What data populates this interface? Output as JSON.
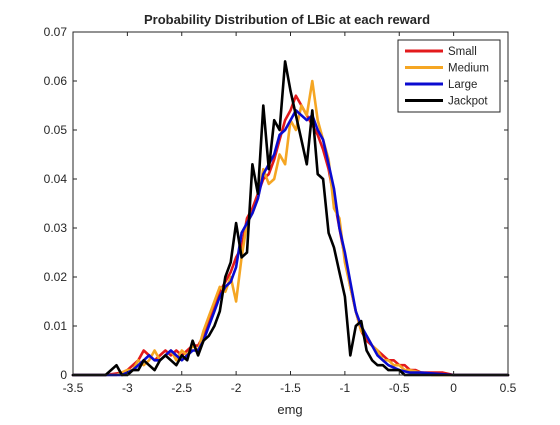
{
  "chart_data": {
    "type": "line",
    "title": "Probability Distribution of LBic at each reward",
    "xlabel": "emg",
    "ylabel": "",
    "xlim": [
      -3.5,
      0.5
    ],
    "ylim": [
      0,
      0.07
    ],
    "xticks": [
      -3.5,
      -3,
      -2.5,
      -2,
      -1.5,
      -1,
      -0.5,
      0,
      0.5
    ],
    "xtick_labels": [
      "-3.5",
      "-3",
      "-2.5",
      "-2",
      "-1.5",
      "-1",
      "-0.5",
      "0",
      "0.5"
    ],
    "yticks": [
      0,
      0.01,
      0.02,
      0.03,
      0.04,
      0.05,
      0.06,
      0.07
    ],
    "ytick_labels": [
      "0",
      "0.01",
      "0.02",
      "0.03",
      "0.04",
      "0.05",
      "0.06",
      "0.07"
    ],
    "grid": false,
    "legend_position": "top-right",
    "series": [
      {
        "name": "Small",
        "color": "#e31a1c",
        "x": [
          -3.5,
          -3.2,
          -3.05,
          -3.0,
          -2.95,
          -2.9,
          -2.85,
          -2.8,
          -2.75,
          -2.7,
          -2.65,
          -2.6,
          -2.55,
          -2.5,
          -2.45,
          -2.4,
          -2.35,
          -2.3,
          -2.25,
          -2.2,
          -2.15,
          -2.1,
          -2.05,
          -2.0,
          -1.95,
          -1.9,
          -1.85,
          -1.8,
          -1.75,
          -1.7,
          -1.65,
          -1.6,
          -1.55,
          -1.5,
          -1.45,
          -1.4,
          -1.35,
          -1.3,
          -1.25,
          -1.2,
          -1.15,
          -1.1,
          -1.05,
          -1.0,
          -0.95,
          -0.9,
          -0.85,
          -0.8,
          -0.75,
          -0.7,
          -0.65,
          -0.6,
          -0.55,
          -0.5,
          -0.45,
          -0.4,
          -0.35,
          -0.3,
          -0.2,
          -0.1,
          0.0,
          0.1,
          0.2,
          0.3,
          0.5
        ],
        "values": [
          0,
          0,
          0.0005,
          0.001,
          0.002,
          0.003,
          0.005,
          0.004,
          0.003,
          0.004,
          0.005,
          0.004,
          0.005,
          0.004,
          0.005,
          0.006,
          0.006,
          0.008,
          0.011,
          0.014,
          0.017,
          0.019,
          0.021,
          0.024,
          0.026,
          0.032,
          0.034,
          0.037,
          0.04,
          0.041,
          0.044,
          0.048,
          0.052,
          0.054,
          0.057,
          0.055,
          0.053,
          0.051,
          0.049,
          0.046,
          0.042,
          0.036,
          0.03,
          0.024,
          0.018,
          0.013,
          0.009,
          0.007,
          0.006,
          0.005,
          0.004,
          0.003,
          0.003,
          0.002,
          0.002,
          0.001,
          0.001,
          0.0005,
          0.0005,
          0.0005,
          0,
          0,
          0,
          0,
          0
        ]
      },
      {
        "name": "Medium",
        "color": "#f5a623",
        "x": [
          -3.5,
          -3.1,
          -3.0,
          -2.95,
          -2.9,
          -2.85,
          -2.8,
          -2.75,
          -2.7,
          -2.65,
          -2.6,
          -2.55,
          -2.5,
          -2.45,
          -2.4,
          -2.35,
          -2.3,
          -2.25,
          -2.2,
          -2.15,
          -2.1,
          -2.05,
          -2.0,
          -1.95,
          -1.9,
          -1.85,
          -1.8,
          -1.75,
          -1.7,
          -1.65,
          -1.6,
          -1.55,
          -1.5,
          -1.45,
          -1.4,
          -1.35,
          -1.3,
          -1.25,
          -1.2,
          -1.15,
          -1.1,
          -1.05,
          -1.0,
          -0.95,
          -0.9,
          -0.85,
          -0.8,
          -0.75,
          -0.7,
          -0.65,
          -0.6,
          -0.55,
          -0.5,
          -0.45,
          -0.4,
          -0.3,
          -0.2,
          0.0,
          0.5
        ],
        "values": [
          0,
          0,
          0.001,
          0.001,
          0.003,
          0.002,
          0.003,
          0.005,
          0.003,
          0.004,
          0.005,
          0.003,
          0.005,
          0.004,
          0.006,
          0.005,
          0.009,
          0.012,
          0.015,
          0.018,
          0.017,
          0.02,
          0.015,
          0.024,
          0.031,
          0.033,
          0.036,
          0.042,
          0.039,
          0.04,
          0.045,
          0.043,
          0.052,
          0.05,
          0.055,
          0.053,
          0.06,
          0.052,
          0.048,
          0.044,
          0.034,
          0.032,
          0.023,
          0.018,
          0.013,
          0.009,
          0.008,
          0.006,
          0.005,
          0.003,
          0.003,
          0.002,
          0.002,
          0.001,
          0.001,
          0.0005,
          0,
          0,
          0
        ]
      },
      {
        "name": "Large",
        "color": "#0b0bd0",
        "x": [
          -3.5,
          -3.05,
          -3.0,
          -2.95,
          -2.9,
          -2.85,
          -2.8,
          -2.75,
          -2.7,
          -2.65,
          -2.6,
          -2.55,
          -2.5,
          -2.45,
          -2.4,
          -2.35,
          -2.3,
          -2.25,
          -2.2,
          -2.15,
          -2.1,
          -2.05,
          -2.0,
          -1.95,
          -1.9,
          -1.85,
          -1.8,
          -1.75,
          -1.7,
          -1.65,
          -1.6,
          -1.55,
          -1.5,
          -1.45,
          -1.4,
          -1.35,
          -1.3,
          -1.25,
          -1.2,
          -1.15,
          -1.1,
          -1.05,
          -1.0,
          -0.95,
          -0.9,
          -0.85,
          -0.8,
          -0.75,
          -0.7,
          -0.65,
          -0.6,
          -0.5,
          -0.4,
          -0.3,
          0.0,
          0.5
        ],
        "values": [
          0,
          0,
          0.0005,
          0.001,
          0.002,
          0.003,
          0.004,
          0.003,
          0.003,
          0.004,
          0.005,
          0.004,
          0.003,
          0.004,
          0.005,
          0.005,
          0.007,
          0.01,
          0.013,
          0.016,
          0.018,
          0.019,
          0.022,
          0.029,
          0.031,
          0.033,
          0.036,
          0.041,
          0.043,
          0.045,
          0.049,
          0.05,
          0.052,
          0.054,
          0.053,
          0.052,
          0.053,
          0.05,
          0.048,
          0.043,
          0.038,
          0.03,
          0.025,
          0.019,
          0.013,
          0.01,
          0.008,
          0.006,
          0.004,
          0.003,
          0.002,
          0.001,
          0.0005,
          0.0005,
          0,
          0
        ]
      },
      {
        "name": "Jackpot",
        "color": "#000000",
        "x": [
          -3.5,
          -3.2,
          -3.1,
          -3.05,
          -3.0,
          -2.95,
          -2.9,
          -2.85,
          -2.8,
          -2.75,
          -2.7,
          -2.65,
          -2.6,
          -2.55,
          -2.5,
          -2.45,
          -2.4,
          -2.35,
          -2.3,
          -2.25,
          -2.2,
          -2.15,
          -2.1,
          -2.05,
          -2.0,
          -1.95,
          -1.9,
          -1.85,
          -1.8,
          -1.75,
          -1.7,
          -1.65,
          -1.6,
          -1.55,
          -1.5,
          -1.45,
          -1.4,
          -1.35,
          -1.3,
          -1.25,
          -1.2,
          -1.15,
          -1.1,
          -1.05,
          -1.0,
          -0.95,
          -0.9,
          -0.85,
          -0.8,
          -0.75,
          -0.7,
          -0.65,
          -0.6,
          -0.5,
          -0.45,
          -0.4,
          -0.3,
          0.0,
          0.5
        ],
        "values": [
          0,
          0,
          0.002,
          0,
          0,
          0.001,
          0.001,
          0.003,
          0.002,
          0.001,
          0.003,
          0.004,
          0.003,
          0.002,
          0.004,
          0.003,
          0.007,
          0.004,
          0.007,
          0.008,
          0.01,
          0.013,
          0.02,
          0.023,
          0.031,
          0.024,
          0.025,
          0.043,
          0.037,
          0.055,
          0.042,
          0.052,
          0.05,
          0.064,
          0.058,
          0.053,
          0.048,
          0.043,
          0.054,
          0.041,
          0.04,
          0.029,
          0.026,
          0.021,
          0.016,
          0.004,
          0.01,
          0.011,
          0.005,
          0.003,
          0.002,
          0.002,
          0.001,
          0.001,
          0,
          0,
          0,
          0,
          0
        ]
      }
    ]
  }
}
